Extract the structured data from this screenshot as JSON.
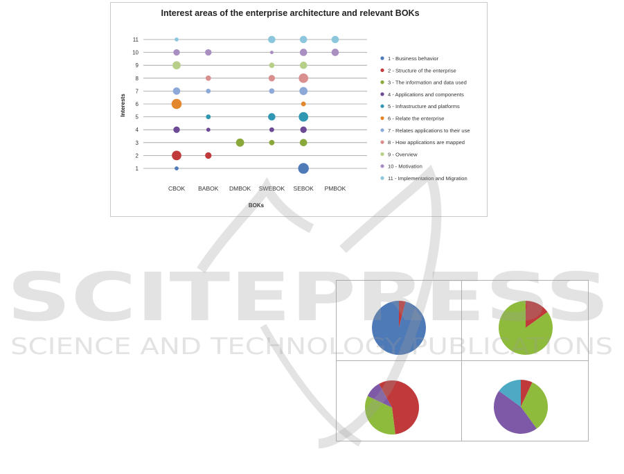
{
  "chart_data": [
    {
      "type": "scatter",
      "title": "Interest areas of the enterprise architecture and relevant BOKs",
      "xlabel": "BOKs",
      "ylabel": "Interests",
      "categories": [
        "CBOK",
        "BABOK",
        "DMBOK",
        "SWEBOK",
        "SEBOK",
        "PMBOK"
      ],
      "yticks": [
        "1",
        "2",
        "3",
        "4",
        "5",
        "6",
        "7",
        "8",
        "9",
        "10",
        "11"
      ],
      "grid": true,
      "legend_position": "right",
      "legend": [
        {
          "label": "1 - Business behavior",
          "color": "#4f7ab8"
        },
        {
          "label": "2 - Structure of the enterprise",
          "color": "#c0393b"
        },
        {
          "label": "3 - The information and data used",
          "color": "#8aa83a"
        },
        {
          "label": "4 - Applications and components",
          "color": "#6c4a96"
        },
        {
          "label": "5 - Infrastructure and platforms",
          "color": "#2f97b1"
        },
        {
          "label": "6 - Relate the enterprise",
          "color": "#e3872d"
        },
        {
          "label": "7 - Relates applications to their use",
          "color": "#8da9d8"
        },
        {
          "label": "8 - How applications are mapped",
          "color": "#d88f8e"
        },
        {
          "label": "9 - Overview",
          "color": "#b8cf89"
        },
        {
          "label": "10 - Motivation",
          "color": "#a98ec2"
        },
        {
          "label": "11 - Implementation and Migration",
          "color": "#8cc6dc"
        }
      ],
      "bubbles": [
        {
          "x": "CBOK",
          "y": 11,
          "size": 1
        },
        {
          "x": "CBOK",
          "y": 10,
          "size": 3
        },
        {
          "x": "CBOK",
          "y": 9,
          "size": 5
        },
        {
          "x": "CBOK",
          "y": 7,
          "size": 4
        },
        {
          "x": "CBOK",
          "y": 6,
          "size": 8
        },
        {
          "x": "CBOK",
          "y": 4,
          "size": 3
        },
        {
          "x": "CBOK",
          "y": 2,
          "size": 7
        },
        {
          "x": "CBOK",
          "y": 1,
          "size": 1
        },
        {
          "x": "BABOK",
          "y": 10,
          "size": 3
        },
        {
          "x": "BABOK",
          "y": 8,
          "size": 2
        },
        {
          "x": "BABOK",
          "y": 7,
          "size": 1.5
        },
        {
          "x": "BABOK",
          "y": 5,
          "size": 1.5
        },
        {
          "x": "BABOK",
          "y": 4,
          "size": 1
        },
        {
          "x": "BABOK",
          "y": 2,
          "size": 3
        },
        {
          "x": "DMBOK",
          "y": 3,
          "size": 5
        },
        {
          "x": "SWEBOK",
          "y": 11,
          "size": 4
        },
        {
          "x": "SWEBOK",
          "y": 10,
          "size": 0.7
        },
        {
          "x": "SWEBOK",
          "y": 9,
          "size": 2
        },
        {
          "x": "SWEBOK",
          "y": 8,
          "size": 3
        },
        {
          "x": "SWEBOK",
          "y": 7,
          "size": 2
        },
        {
          "x": "SWEBOK",
          "y": 5,
          "size": 4
        },
        {
          "x": "SWEBOK",
          "y": 4,
          "size": 1.5
        },
        {
          "x": "SWEBOK",
          "y": 3,
          "size": 2
        },
        {
          "x": "SEBOK",
          "y": 11,
          "size": 4
        },
        {
          "x": "SEBOK",
          "y": 10,
          "size": 4
        },
        {
          "x": "SEBOK",
          "y": 9,
          "size": 4
        },
        {
          "x": "SEBOK",
          "y": 8,
          "size": 7
        },
        {
          "x": "SEBOK",
          "y": 7,
          "size": 5
        },
        {
          "x": "SEBOK",
          "y": 6,
          "size": 1.5
        },
        {
          "x": "SEBOK",
          "y": 5,
          "size": 7
        },
        {
          "x": "SEBOK",
          "y": 4,
          "size": 3
        },
        {
          "x": "SEBOK",
          "y": 3,
          "size": 4
        },
        {
          "x": "SEBOK",
          "y": 1,
          "size": 9
        },
        {
          "x": "PMBOK",
          "y": 11,
          "size": 4
        },
        {
          "x": "PMBOK",
          "y": 10,
          "size": 4
        }
      ]
    },
    {
      "type": "pie",
      "slices": [
        {
          "value": 4,
          "color": "#c0393b"
        },
        {
          "value": 96,
          "color": "#4f7ab8"
        }
      ]
    },
    {
      "type": "pie",
      "slices": [
        {
          "value": 15,
          "color": "#c0393b"
        },
        {
          "value": 85,
          "color": "#8fbb3c"
        }
      ]
    },
    {
      "type": "pie",
      "slices": [
        {
          "value": 48,
          "color": "#c0393b"
        },
        {
          "value": 34,
          "color": "#8fbb3c"
        },
        {
          "value": 10,
          "color": "#7e59a8"
        },
        {
          "value": 8,
          "color": "#c0393b"
        }
      ]
    },
    {
      "type": "pie",
      "slices": [
        {
          "value": 7,
          "color": "#c0393b"
        },
        {
          "value": 33,
          "color": "#8fbb3c"
        },
        {
          "value": 45,
          "color": "#7e59a8"
        },
        {
          "value": 15,
          "color": "#4ea9c4"
        }
      ]
    }
  ],
  "watermark": {
    "line1": "SCITEPRESS",
    "line2": "SCIENCE AND TECHNOLOGY PUBLICATIONS"
  }
}
